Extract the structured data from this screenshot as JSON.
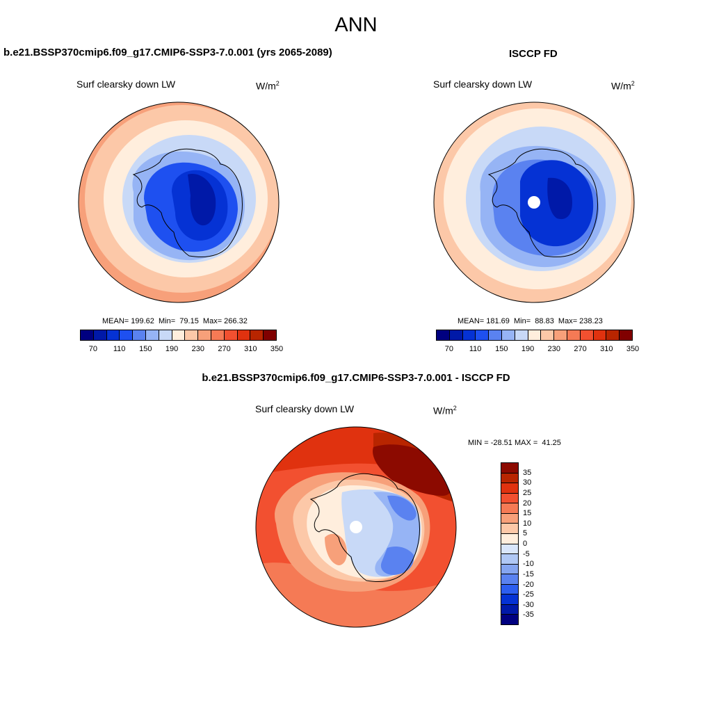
{
  "main_title": "ANN",
  "panels": {
    "left": {
      "title": "b.e21.BSSP370cmip6.f09_g17.CMIP6-SSP3-7.0.001 (yrs 2065-2089)",
      "variable": "Surf clearsky down LW",
      "units_base": "W/m",
      "units_exp": "2",
      "stats": "MEAN= 199.62  Min=  79.15  Max= 266.32"
    },
    "right": {
      "title": "ISCCP FD",
      "variable": "Surf clearsky down LW",
      "units_base": "W/m",
      "units_exp": "2",
      "stats": "MEAN= 181.69  Min=  88.83  Max= 238.23"
    },
    "diff": {
      "title": "b.e21.BSSP370cmip6.f09_g17.CMIP6-SSP3-7.0.001 - ISCCP FD",
      "variable": "Surf clearsky down LW",
      "units_base": "W/m",
      "units_exp": "2",
      "stats": "MIN = -28.51 MAX =  41.25"
    }
  },
  "field_colorbar": {
    "colors": [
      "#000080",
      "#0019a8",
      "#0532d4",
      "#1e50f0",
      "#5a82f0",
      "#96b4f5",
      "#c8d9f7",
      "#ffeedd",
      "#fcc8a8",
      "#f7a07a",
      "#f57a55",
      "#f25030",
      "#e0320f",
      "#b82500",
      "#800000"
    ],
    "labels": [
      "70",
      "110",
      "150",
      "190",
      "230",
      "270",
      "310",
      "350"
    ]
  },
  "diff_colorbar": {
    "colors": [
      "#8c0a00",
      "#b82500",
      "#e0320f",
      "#f25030",
      "#f57a55",
      "#f7a07a",
      "#fcc8a8",
      "#ffeedd",
      "#d9e6fb",
      "#b0c8f5",
      "#85a5f0",
      "#5a82f0",
      "#2d5ef0",
      "#0532d4",
      "#0019a8",
      "#000080"
    ],
    "labels": [
      "35",
      "30",
      "25",
      "20",
      "15",
      "10",
      "5",
      "0",
      "-5",
      "-10",
      "-15",
      "-20",
      "-25",
      "-30",
      "-35"
    ]
  }
}
